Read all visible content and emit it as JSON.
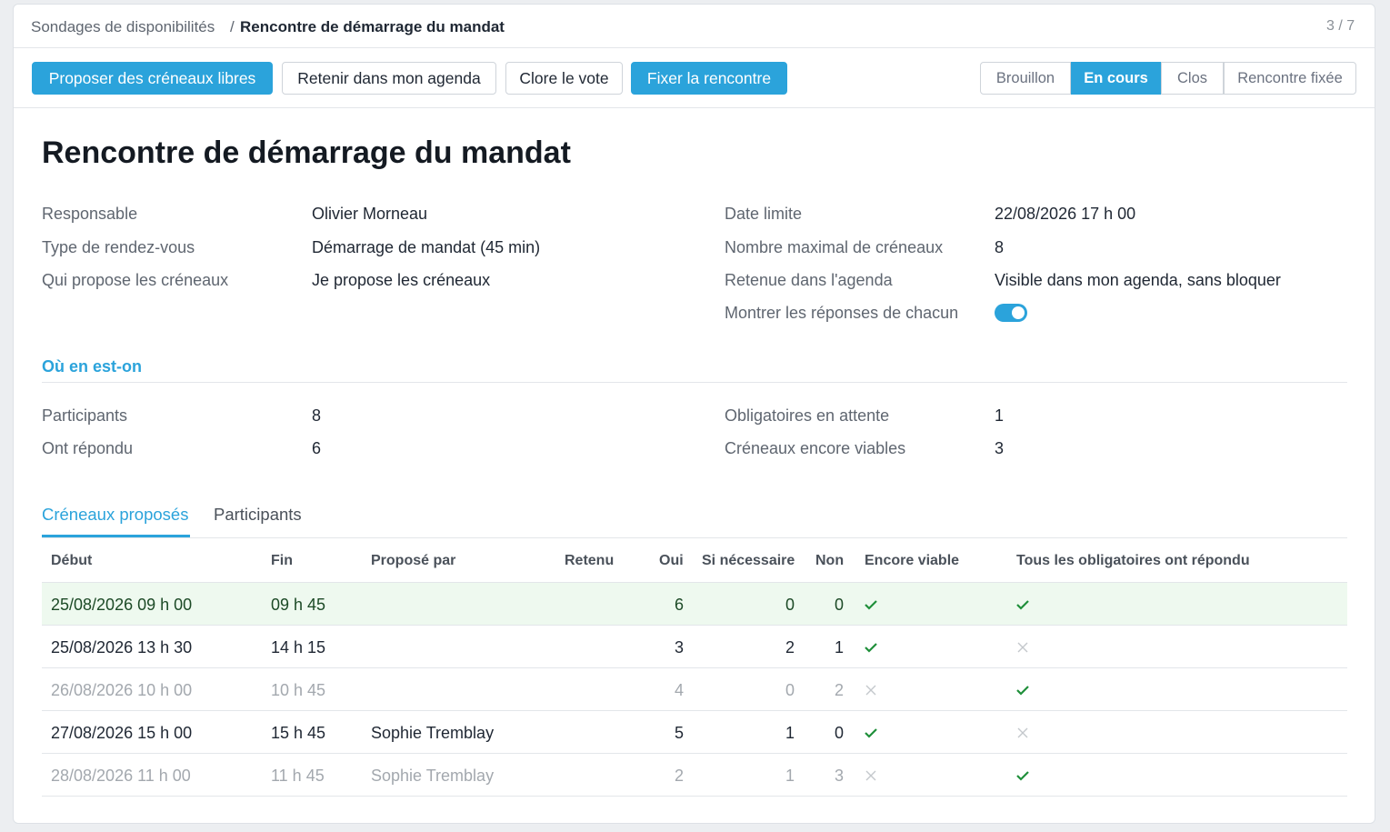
{
  "header": {
    "breadcrumb": [
      "Sondages de disponibilités",
      "Rencontre de démarrage du mandat"
    ],
    "separator": "/",
    "pager": "3 / 7"
  },
  "toolbar": {
    "actions": [
      {
        "label": "Proposer des créneaux libres",
        "primary": true
      },
      {
        "label": "Retenir dans mon agenda",
        "primary": false
      },
      {
        "label": "Clore le vote",
        "primary": false
      },
      {
        "label": "Fixer la rencontre",
        "primary": true
      }
    ],
    "statuses": [
      "Brouillon",
      "En cours",
      "Clos",
      "Rencontre fixée"
    ],
    "active_status": 1
  },
  "title": "Rencontre de démarrage du mandat",
  "details": {
    "left": [
      {
        "label": "Responsable",
        "value": "Olivier Morneau"
      },
      {
        "label": "Type de rendez-vous",
        "value": "Démarrage de mandat (45 min)"
      },
      {
        "label": "Qui propose les créneaux",
        "value": "Je propose les créneaux"
      }
    ],
    "right": [
      {
        "label": "Date limite",
        "value": "22/08/2026 17 h 00"
      },
      {
        "label": "Nombre maximal de créneaux",
        "value": "8"
      },
      {
        "label": "Retenue dans l'agenda",
        "value": "Visible dans mon agenda, sans bloquer"
      },
      {
        "label": "Montrer les réponses de chacun",
        "toggle": true
      }
    ]
  },
  "progress": {
    "heading": "Où en est-on",
    "left": [
      {
        "label": "Participants",
        "value": "8"
      },
      {
        "label": "Ont répondu",
        "value": "6"
      }
    ],
    "right": [
      {
        "label": "Obligatoires en attente",
        "value": "1"
      },
      {
        "label": "Créneaux encore viables",
        "value": "3"
      }
    ]
  },
  "tabs": {
    "items": [
      "Créneaux proposés",
      "Participants"
    ],
    "active": 0
  },
  "table": {
    "columns": [
      "Début",
      "Fin",
      "Proposé par",
      "Retenu",
      "Oui",
      "Si nécessaire",
      "Non",
      "Encore viable",
      "Tous les obligatoires ont répondu"
    ],
    "rows": [
      {
        "start": "25/08/2026 09 h 00",
        "end": "09 h 45",
        "proposed_by": null,
        "yes": "6",
        "maybe": "0",
        "no": "0",
        "viable": true,
        "all_required": true,
        "highlight": true,
        "muted": false
      },
      {
        "start": "25/08/2026 13 h 30",
        "end": "14 h 15",
        "proposed_by": null,
        "yes": "3",
        "maybe": "2",
        "no": "1",
        "viable": true,
        "all_required": false,
        "highlight": false,
        "muted": false
      },
      {
        "start": "26/08/2026 10 h 00",
        "end": "10 h 45",
        "proposed_by": null,
        "yes": "4",
        "maybe": "0",
        "no": "2",
        "viable": false,
        "all_required": true,
        "highlight": false,
        "muted": true
      },
      {
        "start": "27/08/2026 15 h 00",
        "end": "15 h 45",
        "proposed_by": "Sophie Tremblay",
        "yes": "5",
        "maybe": "1",
        "no": "0",
        "viable": true,
        "all_required": false,
        "highlight": false,
        "muted": false
      },
      {
        "start": "28/08/2026 11 h 00",
        "end": "11 h 45",
        "proposed_by": "Sophie Tremblay",
        "yes": "2",
        "maybe": "1",
        "no": "3",
        "viable": false,
        "all_required": true,
        "highlight": false,
        "muted": true
      }
    ]
  }
}
